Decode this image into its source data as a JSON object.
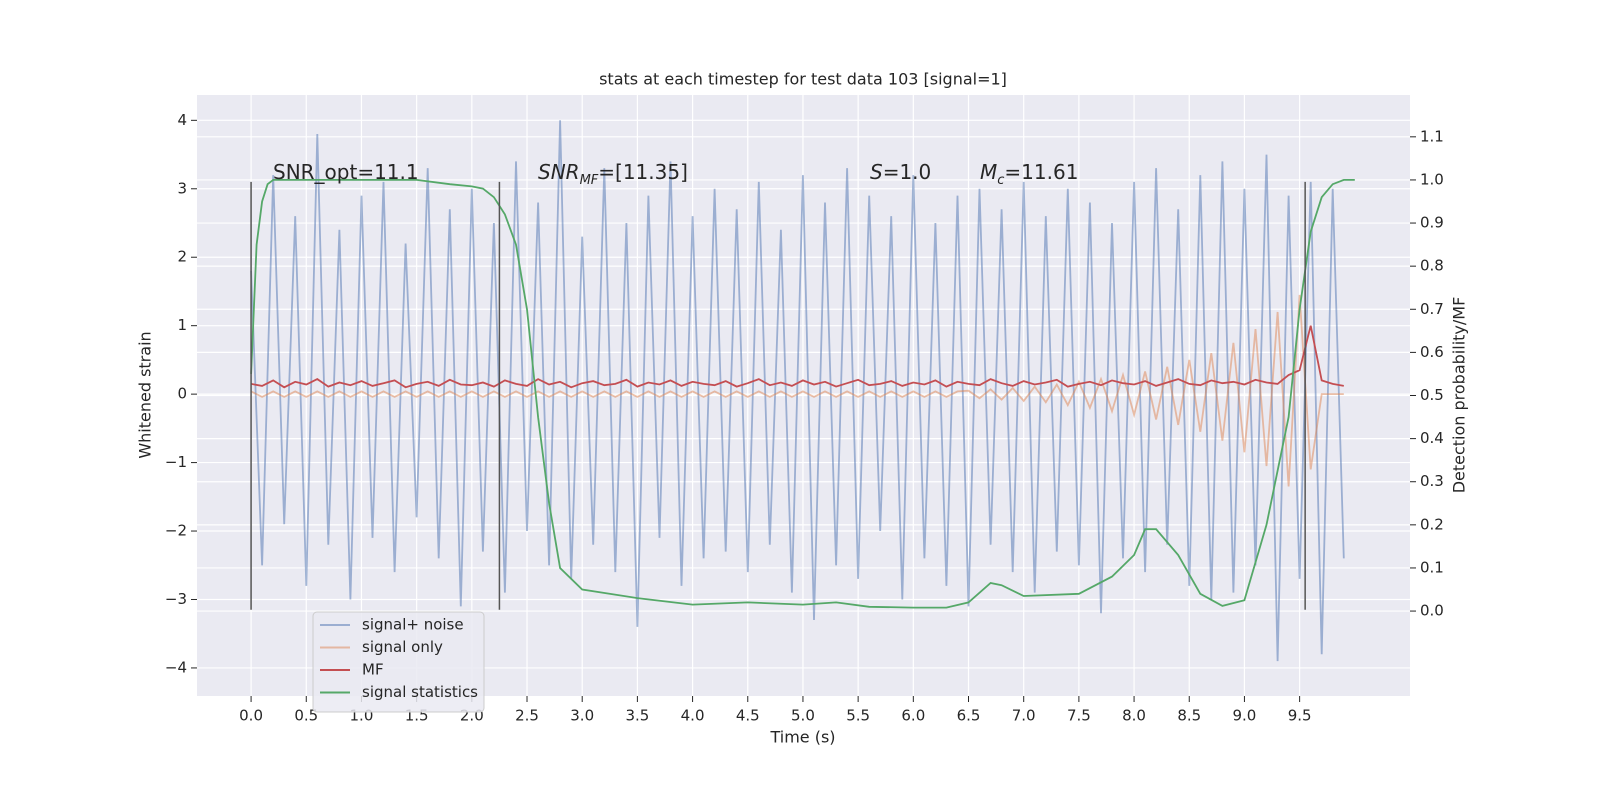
{
  "chart_data": {
    "type": "line",
    "title": "stats at each timestep for test data 103 [signal=1]",
    "xlabel": "Time (s)",
    "ylabel": "Whitened strain",
    "y2label": "Detection probability/MF",
    "xlim": [
      -0.49,
      10.5
    ],
    "ylim": [
      -4.41,
      4.37
    ],
    "y2lim": [
      -0.197,
      1.197
    ],
    "grid": true,
    "legend": "lower left",
    "xticks": [
      {
        "value": 0,
        "label": "0.0"
      },
      {
        "value": 0.5,
        "label": "0.5"
      },
      {
        "value": 1,
        "label": "1.0"
      },
      {
        "value": 1.5,
        "label": "1.5"
      },
      {
        "value": 2,
        "label": "2.0"
      },
      {
        "value": 2.5,
        "label": "2.5"
      },
      {
        "value": 3,
        "label": "3.0"
      },
      {
        "value": 3.5,
        "label": "3.5"
      },
      {
        "value": 4,
        "label": "4.0"
      },
      {
        "value": 4.5,
        "label": "4.5"
      },
      {
        "value": 5,
        "label": "5.0"
      },
      {
        "value": 5.5,
        "label": "5.5"
      },
      {
        "value": 6,
        "label": "6.0"
      },
      {
        "value": 6.5,
        "label": "6.5"
      },
      {
        "value": 7,
        "label": "7.0"
      },
      {
        "value": 7.5,
        "label": "7.5"
      },
      {
        "value": 8,
        "label": "8.0"
      },
      {
        "value": 8.5,
        "label": "8.5"
      },
      {
        "value": 9,
        "label": "9.0"
      },
      {
        "value": 9.5,
        "label": "9.5"
      }
    ],
    "yticks": [
      {
        "value": -4,
        "label": "−4"
      },
      {
        "value": -3,
        "label": "−3"
      },
      {
        "value": -2,
        "label": "−2"
      },
      {
        "value": -1,
        "label": "−1"
      },
      0,
      1,
      2,
      3,
      4
    ],
    "y2ticks": [
      {
        "value": 0,
        "label": "0.0"
      },
      {
        "value": 0.1,
        "label": "0.1"
      },
      {
        "value": 0.2,
        "label": "0.2"
      },
      {
        "value": 0.3,
        "label": "0.3"
      },
      {
        "value": 0.4,
        "label": "0.4"
      },
      {
        "value": 0.5,
        "label": "0.5"
      },
      {
        "value": 0.6,
        "label": "0.6"
      },
      {
        "value": 0.7,
        "label": "0.7"
      },
      {
        "value": 0.8,
        "label": "0.8"
      },
      {
        "value": 0.9,
        "label": "0.9"
      },
      {
        "value": 1,
        "label": "1.0"
      },
      {
        "value": 1.1,
        "label": "1.1"
      }
    ],
    "annotations": [
      {
        "parts": [
          {
            "text": "SNR_opt=11.1"
          }
        ]
      },
      {
        "parts": [
          {
            "text": "SNR",
            "italic": true
          },
          {
            "text": "MF",
            "italic": true,
            "sub": true
          },
          {
            "text": "=[11.35]"
          }
        ]
      },
      {
        "parts": [
          {
            "text": "S",
            "italic": true
          },
          {
            "text": "=1.0"
          }
        ]
      },
      {
        "parts": [
          {
            "text": "M",
            "italic": true
          },
          {
            "text": "c",
            "italic": true,
            "sub": true
          },
          {
            "text": "=11.61"
          }
        ]
      }
    ],
    "vlines": {
      "x": [
        0,
        2.25,
        9.55
      ],
      "range": [
        -3.15,
        3.1
      ],
      "color": "#555555"
    },
    "x": [
      0,
      0.1,
      0.2,
      0.3,
      0.4,
      0.5,
      0.6,
      0.7,
      0.8,
      0.9,
      1,
      1.1,
      1.2,
      1.3,
      1.4,
      1.5,
      1.6,
      1.7,
      1.8,
      1.9,
      2,
      2.1,
      2.2,
      2.3,
      2.4,
      2.5,
      2.6,
      2.7,
      2.8,
      2.9,
      3,
      3.1,
      3.2,
      3.3,
      3.4,
      3.5,
      3.6,
      3.7,
      3.8,
      3.9,
      4,
      4.1,
      4.2,
      4.3,
      4.4,
      4.5,
      4.6,
      4.7,
      4.8,
      4.9,
      5,
      5.1,
      5.2,
      5.3,
      5.4,
      5.5,
      5.6,
      5.7,
      5.8,
      5.9,
      6,
      6.1,
      6.2,
      6.3,
      6.4,
      6.5,
      6.6,
      6.7,
      6.8,
      6.9,
      7,
      7.1,
      7.2,
      7.3,
      7.4,
      7.5,
      7.6,
      7.7,
      7.8,
      7.9,
      8,
      8.1,
      8.2,
      8.3,
      8.4,
      8.5,
      8.6,
      8.7,
      8.8,
      8.9,
      9,
      9.1,
      9.2,
      9.3,
      9.4,
      9.5,
      9.6,
      9.7,
      9.8,
      9.9
    ],
    "series": [
      {
        "name": "signal+ noise",
        "color": "#4c72b0",
        "opacity": 0.5,
        "values": [
          1.8,
          -2.5,
          3.2,
          -1.9,
          2.6,
          -2.8,
          3.8,
          -2.2,
          2.4,
          -3.0,
          2.9,
          -2.1,
          3.1,
          -2.6,
          2.2,
          -1.8,
          3.3,
          -2.4,
          2.7,
          -3.1,
          3.0,
          -2.3,
          2.5,
          -2.9,
          3.4,
          -2.0,
          2.8,
          -2.5,
          4.0,
          -2.7,
          2.3,
          -2.2,
          3.3,
          -2.6,
          2.5,
          -3.4,
          2.9,
          -2.1,
          3.4,
          -2.8,
          2.6,
          -2.4,
          3.0,
          -2.3,
          2.7,
          -2.6,
          3.1,
          -2.2,
          2.4,
          -2.9,
          3.2,
          -3.3,
          2.8,
          -2.5,
          3.3,
          -2.7,
          2.9,
          -2.0,
          2.6,
          -3.0,
          3.2,
          -2.4,
          2.5,
          -2.8,
          2.9,
          -3.1,
          3.0,
          -2.2,
          2.7,
          -2.6,
          3.1,
          -2.9,
          2.6,
          -2.3,
          3.0,
          -2.5,
          2.8,
          -3.2,
          2.5,
          -2.4,
          3.1,
          -2.6,
          3.3,
          -2.2,
          2.7,
          -2.8,
          3.2,
          -3.0,
          3.4,
          -2.9,
          3.0,
          -2.5,
          3.5,
          -3.9,
          2.9,
          -2.7,
          3.1,
          -3.8,
          3.0,
          -2.4
        ]
      },
      {
        "name": "signal only",
        "color": "#dd8452",
        "opacity": 0.5,
        "values": [
          0.04,
          -0.04,
          0.04,
          -0.04,
          0.04,
          -0.04,
          0.04,
          -0.04,
          0.04,
          -0.04,
          0.04,
          -0.04,
          0.04,
          -0.04,
          0.04,
          -0.04,
          0.04,
          -0.04,
          0.04,
          -0.04,
          0.04,
          -0.04,
          0.04,
          -0.04,
          0.04,
          -0.04,
          0.04,
          -0.04,
          0.04,
          -0.04,
          0.04,
          -0.04,
          0.04,
          -0.04,
          0.04,
          -0.04,
          0.04,
          -0.04,
          0.04,
          -0.04,
          0.04,
          -0.04,
          0.04,
          -0.04,
          0.04,
          -0.04,
          0.04,
          -0.04,
          0.04,
          -0.04,
          0.04,
          -0.04,
          0.04,
          -0.04,
          0.04,
          -0.04,
          0.04,
          -0.04,
          0.04,
          -0.04,
          0.04,
          -0.04,
          0.04,
          -0.04,
          0.04,
          0.05,
          -0.06,
          0.07,
          -0.08,
          0.09,
          -0.1,
          0.11,
          -0.12,
          0.14,
          -0.16,
          0.18,
          -0.2,
          0.22,
          -0.25,
          0.28,
          -0.3,
          0.33,
          -0.37,
          0.4,
          -0.45,
          0.5,
          -0.55,
          0.6,
          -0.68,
          0.75,
          -0.85,
          0.95,
          -1.05,
          1.2,
          -1.35,
          1.45,
          -1.1,
          0,
          0,
          0
        ]
      },
      {
        "name": "MF",
        "color": "#c44e52",
        "opacity": 1,
        "values": [
          0.15,
          0.12,
          0.2,
          0.1,
          0.18,
          0.14,
          0.22,
          0.11,
          0.17,
          0.13,
          0.19,
          0.12,
          0.16,
          0.2,
          0.1,
          0.15,
          0.18,
          0.12,
          0.21,
          0.14,
          0.13,
          0.17,
          0.11,
          0.2,
          0.15,
          0.12,
          0.22,
          0.14,
          0.18,
          0.1,
          0.16,
          0.19,
          0.13,
          0.15,
          0.21,
          0.11,
          0.17,
          0.14,
          0.2,
          0.12,
          0.18,
          0.15,
          0.13,
          0.19,
          0.11,
          0.16,
          0.22,
          0.13,
          0.17,
          0.12,
          0.2,
          0.14,
          0.18,
          0.11,
          0.16,
          0.21,
          0.13,
          0.15,
          0.19,
          0.12,
          0.17,
          0.14,
          0.2,
          0.11,
          0.18,
          0.15,
          0.13,
          0.22,
          0.16,
          0.12,
          0.19,
          0.14,
          0.17,
          0.21,
          0.11,
          0.15,
          0.18,
          0.13,
          0.2,
          0.16,
          0.14,
          0.19,
          0.12,
          0.17,
          0.22,
          0.15,
          0.13,
          0.2,
          0.16,
          0.18,
          0.14,
          0.21,
          0.17,
          0.15,
          0.28,
          0.35,
          1.0,
          0.2,
          0.15,
          0.12
        ]
      },
      {
        "name": "signal statistics",
        "color": "#55a868",
        "opacity": 1,
        "axis": "y2",
        "x": [
          0,
          0.05,
          0.1,
          0.15,
          0.2,
          0.3,
          0.5,
          1.0,
          1.5,
          1.8,
          2.0,
          2.1,
          2.2,
          2.3,
          2.4,
          2.5,
          2.6,
          2.7,
          2.8,
          3.0,
          3.5,
          4.0,
          4.5,
          5.0,
          5.3,
          5.6,
          6.0,
          6.3,
          6.5,
          6.7,
          6.8,
          7.0,
          7.5,
          7.8,
          8.0,
          8.1,
          8.2,
          8.4,
          8.6,
          8.8,
          9.0,
          9.2,
          9.4,
          9.5,
          9.6,
          9.7,
          9.8,
          9.9,
          10.0
        ],
        "values": [
          0.55,
          0.85,
          0.95,
          0.99,
          1.0,
          1.0,
          1.0,
          1.0,
          1.0,
          0.99,
          0.985,
          0.98,
          0.96,
          0.92,
          0.85,
          0.7,
          0.45,
          0.25,
          0.1,
          0.05,
          0.03,
          0.015,
          0.02,
          0.015,
          0.02,
          0.01,
          0.008,
          0.008,
          0.02,
          0.065,
          0.06,
          0.035,
          0.04,
          0.08,
          0.13,
          0.19,
          0.19,
          0.13,
          0.04,
          0.012,
          0.025,
          0.2,
          0.45,
          0.7,
          0.88,
          0.96,
          0.99,
          1.0,
          1.0
        ]
      }
    ]
  }
}
